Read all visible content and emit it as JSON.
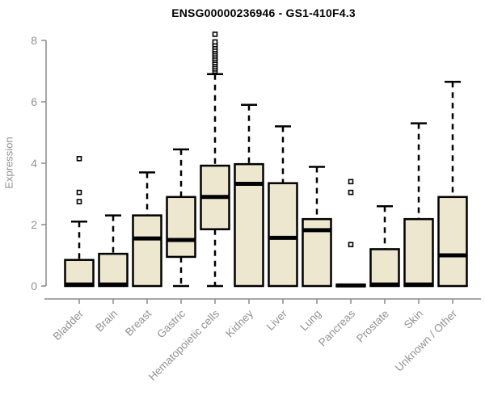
{
  "chart_data": {
    "type": "boxplot",
    "title": "ENSG00000236946 - GS1-410F4.3",
    "xlabel": "",
    "ylabel": "Expression",
    "ylim": [
      0,
      8.4
    ],
    "yticks": [
      0,
      2,
      4,
      6,
      8
    ],
    "grid": false,
    "legend": null,
    "categories": [
      "Bladder",
      "Brain",
      "Breast",
      "Gastric",
      "Hematopoietic cells",
      "Kidney",
      "Liver",
      "Lung",
      "Pancreas",
      "Prostate",
      "Skin",
      "Unknown / Other"
    ],
    "boxes": [
      {
        "category": "Bladder",
        "whisker_low": 0,
        "q1": 0,
        "median": 0.05,
        "q3": 0.85,
        "whisker_high": 2.1,
        "outliers": [
          2.75,
          3.05,
          4.15
        ]
      },
      {
        "category": "Brain",
        "whisker_low": 0,
        "q1": 0,
        "median": 0.05,
        "q3": 1.05,
        "whisker_high": 2.3,
        "outliers": []
      },
      {
        "category": "Breast",
        "whisker_low": 0,
        "q1": 0,
        "median": 1.55,
        "q3": 2.3,
        "whisker_high": 3.7,
        "outliers": []
      },
      {
        "category": "Gastric",
        "whisker_low": 0,
        "q1": 0.95,
        "median": 1.5,
        "q3": 2.9,
        "whisker_high": 4.45,
        "outliers": []
      },
      {
        "category": "Hematopoietic cells",
        "whisker_low": 0,
        "q1": 1.85,
        "median": 2.9,
        "q3": 3.92,
        "whisker_high": 6.9,
        "outliers": [
          7.0,
          7.07,
          7.14,
          7.21,
          7.28,
          7.35,
          7.42,
          7.49,
          7.56,
          7.63,
          7.7,
          7.78,
          7.86,
          7.95,
          8.2
        ]
      },
      {
        "category": "Kidney",
        "whisker_low": 0,
        "q1": 0,
        "median": 3.33,
        "q3": 3.97,
        "whisker_high": 5.9,
        "outliers": []
      },
      {
        "category": "Liver",
        "whisker_low": 0,
        "q1": 0,
        "median": 1.57,
        "q3": 3.35,
        "whisker_high": 5.2,
        "outliers": []
      },
      {
        "category": "Lung",
        "whisker_low": 0,
        "q1": 0,
        "median": 1.82,
        "q3": 2.18,
        "whisker_high": 3.88,
        "outliers": []
      },
      {
        "category": "Pancreas",
        "whisker_low": 0,
        "q1": 0,
        "median": 0.02,
        "q3": 0.04,
        "whisker_high": 0.04,
        "outliers": [
          1.35,
          3.05,
          3.4
        ]
      },
      {
        "category": "Prostate",
        "whisker_low": 0,
        "q1": 0,
        "median": 0.05,
        "q3": 1.2,
        "whisker_high": 2.6,
        "outliers": []
      },
      {
        "category": "Skin",
        "whisker_low": 0,
        "q1": 0,
        "median": 0.05,
        "q3": 2.18,
        "whisker_high": 5.3,
        "outliers": []
      },
      {
        "category": "Unknown / Other",
        "whisker_low": 0,
        "q1": 0,
        "median": 1.0,
        "q3": 2.9,
        "whisker_high": 6.65,
        "outliers": []
      }
    ],
    "colors": {
      "box_fill": "#EDE7CF",
      "box_stroke": "#000000",
      "median": "#000000",
      "whisker": "#000000",
      "outlier_fill": "#ffffff",
      "axis": "#8a8a8a",
      "tick_label": "#929292",
      "title": "#000000",
      "background": "#ffffff"
    }
  }
}
